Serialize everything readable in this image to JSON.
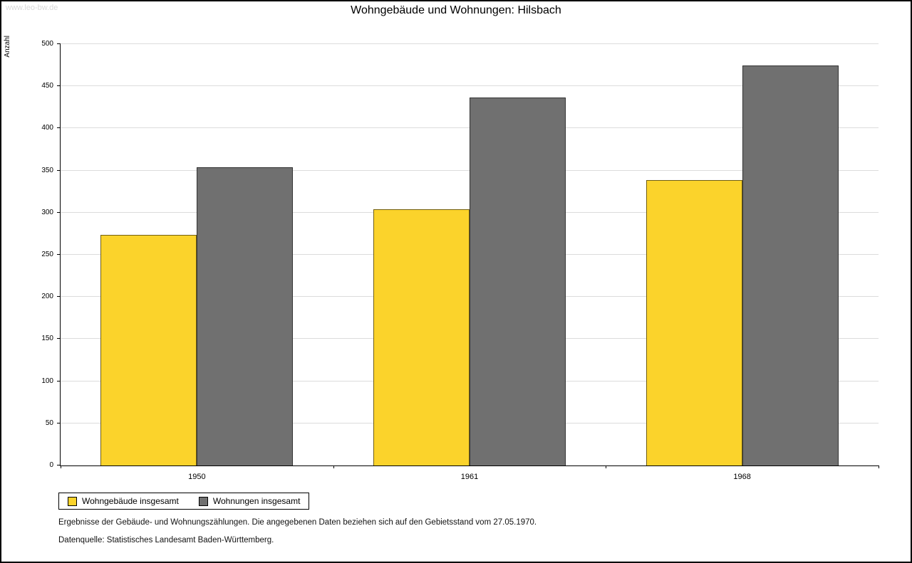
{
  "page": {
    "watermark": "www.leo-bw.de",
    "title": "Wohngebäude und Wohnungen: Hilsbach",
    "footnotes": {
      "line1": "Ergebnisse der Gebäude- und Wohnungszählungen. Die angegebenen Daten beziehen sich auf den Gebietsstand vom 27.05.1970.",
      "line2": "Datenquelle: Statistisches Landesamt Baden-Württemberg."
    }
  },
  "chart_data": {
    "type": "bar",
    "title": "Wohngebäude und Wohnungen: Hilsbach",
    "xlabel": "",
    "ylabel": "Anzahl",
    "categories": [
      "1950",
      "1961",
      "1968"
    ],
    "series": [
      {
        "name": "Wohngebäude insgesamt",
        "color": "#FBD32B",
        "values": [
          274,
          304,
          339
        ]
      },
      {
        "name": "Wohnungen insgesamt",
        "color": "#707070",
        "values": [
          354,
          437,
          475
        ]
      }
    ],
    "ylim": [
      0,
      500
    ],
    "yticks": [
      0,
      50,
      100,
      150,
      200,
      250,
      300,
      350,
      400,
      450,
      500
    ],
    "grid": true,
    "legend_position": "bottom-left"
  }
}
